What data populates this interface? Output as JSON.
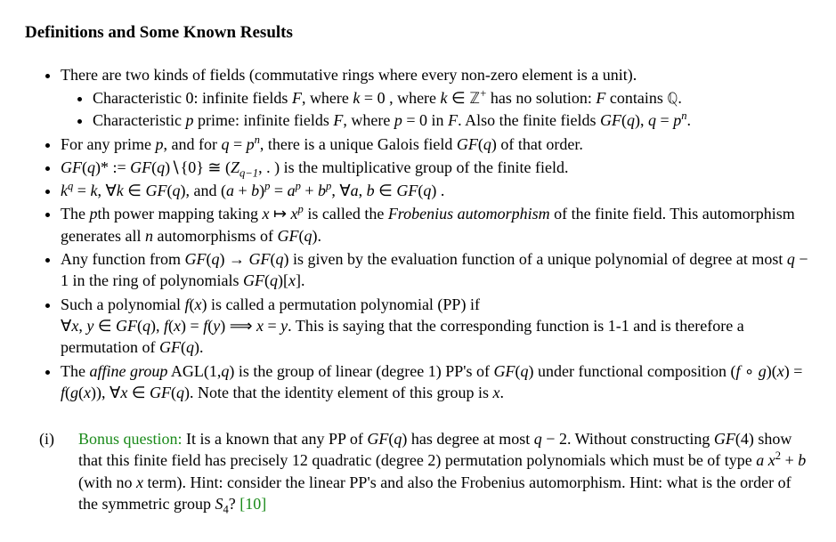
{
  "heading": "Definitions and Some Known Results",
  "b1": "There are two kinds of fields (commutative rings where every non-zero element is a unit).",
  "b1a_pre": "Characteristic 0: infinite fields ",
  "b1a_F": "F",
  "b1a_mid1": ", where ",
  "b1a_k": "k",
  "b1a_eq0": " = 0 , where ",
  "b1a_k2": "k",
  "b1a_in": " ∈ ",
  "b1a_Zplus": "ℤ",
  "b1a_plus": "+",
  "b1a_nosol": " has no solution: ",
  "b1a_F2": "F",
  "b1a_cont": " contains ",
  "b1a_Q": "ℚ",
  "b1a_dot": ".",
  "b1b_pre": "Characteristic ",
  "b1b_p": "p",
  "b1b_prime": " prime: infinite fields ",
  "b1b_F": "F",
  "b1b_where": ", where ",
  "b1b_p2": "p",
  "b1b_eq0": " = 0 in ",
  "b1b_F2": "F",
  "b1b_also": ". Also the finite fields ",
  "b1b_GFq": "GF",
  "b1b_paren": "(",
  "b1b_q": "q",
  "b1b_paren2": "), ",
  "b1b_q2": "q",
  "b1b_eq": " = ",
  "b1b_p3": "p",
  "b1b_n": "n",
  "b1b_dot": ".",
  "b2_pre": "For any prime ",
  "b2_p": "p",
  "b2_and": ", and for ",
  "b2_q": "q",
  "b2_eq": " = ",
  "b2_p2": "p",
  "b2_n": "n",
  "b2_comma": ",  there is a unique Galois field ",
  "b2_GF": "GF",
  "b2_paren": "(",
  "b2_q2": "q",
  "b2_paren2": ") of that order.",
  "b3_GF": "GF",
  "b3_paren1": "(",
  "b3_q": "q",
  "b3_star": ")* := ",
  "b3_GF2": "GF",
  "b3_paren2": "(",
  "b3_q2": "q",
  "b3_set": ")∖{0} ≅ (",
  "b3_Z": "Z",
  "b3_qminus": "q−1",
  "b3_dot": ", . ) is the multiplicative group of the finite field.",
  "b4_k": "k",
  "b4_q": "q",
  "b4_eqk": " = ",
  "b4_k2": "k",
  "b4_fork": ", ∀",
  "b4_k3": "k",
  "b4_inGF": " ∈ ",
  "b4_GF": "GF",
  "b4_p1": "(",
  "b4_q2": "q",
  "b4_p2": "), and (",
  "b4_a": "a",
  "b4_plus": " + ",
  "b4_b": "b",
  "b4_p3": ")",
  "b4_pexp": "p",
  "b4_eq2": " = ",
  "b4_a2": "a",
  "b4_pexp2": "p",
  "b4_plus2": " + ",
  "b4_b2": "b",
  "b4_pexp3": "p",
  "b4_forab": ", ∀",
  "b4_a3": "a",
  "b4_comma": ", ",
  "b4_b3": "b",
  "b4_in2": " ∈ ",
  "b4_GF2": "GF",
  "b4_p4": "(",
  "b4_q3": "q",
  "b4_p5": ") .",
  "b5_pre": "The ",
  "b5_p": "p",
  "b5_th": "th power mapping taking ",
  "b5_x": "x",
  "b5_map": " ↦ ",
  "b5_x2": "x",
  "b5_pexp": "p",
  "b5_called": " is called the ",
  "b5_frob": "Frobenius automorphism",
  "b5_of": " of the finite field.   This automorphism generates all ",
  "b5_n": "n",
  "b5_aut": " automorphisms of ",
  "b5_GF": "GF",
  "b5_p1": "(",
  "b5_q": "q",
  "b5_p2": ").",
  "b6_pre": "Any function from ",
  "b6_GF": "GF",
  "b6_p1": "(",
  "b6_q": "q",
  "b6_arrow": ") → ",
  "b6_GF2": "GF",
  "b6_p2": "(",
  "b6_q2": "q",
  "b6_p3": ") is given by the evaluation function of a unique polynomial of degree at most ",
  "b6_q3": "q",
  "b6_m1": " − 1 in the ring of polynomials ",
  "b6_GF3": "GF",
  "b6_p4": "(",
  "b6_q4": "q",
  "b6_p5": ")[",
  "b6_x": "x",
  "b6_p6": "].",
  "b7_pre": "Such a polynomial ",
  "b7_f": "f",
  "b7_p1": "(",
  "b7_x": "x",
  "b7_p2": ") is called a permutation polynomial (PP) if",
  "b7_for": "∀",
  "b7_x2": "x",
  "b7_c": ", ",
  "b7_y": "y",
  "b7_in": " ∈ ",
  "b7_GF": "GF",
  "b7_p3": "(",
  "b7_q": "q",
  "b7_p4": "), ",
  "b7_f2": "f",
  "b7_p5": "(",
  "b7_x3": "x",
  "b7_p6": ") = ",
  "b7_f3": "f",
  "b7_p7": "(",
  "b7_y2": "y",
  "b7_p8": ")  ⟹  ",
  "b7_x4": "x",
  "b7_eq": " = ",
  "b7_y3": "y",
  "b7_say": ". This is saying that the corresponding function is 1-1 and is therefore a permutation of ",
  "b7_GF2": "GF",
  "b7_p9": "(",
  "b7_q2": "q",
  "b7_p10": ").",
  "b8_pre": "The ",
  "b8_ag": "affine group",
  "b8_agl": " AGL(1,",
  "b8_q": "q",
  "b8_p1": ") is the group of linear (degree 1) PP's of ",
  "b8_GF": "GF",
  "b8_p2": "(",
  "b8_q2": "q",
  "b8_p3": ") under functional composition (",
  "b8_f": "f",
  "b8_comp": " ∘ ",
  "b8_g": "g",
  "b8_p4": ")(",
  "b8_x": "x",
  "b8_p5": ") = ",
  "b8_f2": "f",
  "b8_p6": "(",
  "b8_g2": "g",
  "b8_p7": "(",
  "b8_x2": "x",
  "b8_p8": ")), ∀",
  "b8_x3": "x",
  "b8_in": " ∈ ",
  "b8_GF2": "GF",
  "b8_p9": "(",
  "b8_q3": "q",
  "b8_p10": ").  Note that the identity element of this group is ",
  "b8_x4": "x",
  "b8_dot": ".",
  "bonus_num": "(i)",
  "bonus_label": "Bonus question:",
  "bonus_pre": " It is a known that any PP of ",
  "bonus_GF": "GF",
  "bonus_p1": "(",
  "bonus_q": "q",
  "bonus_p2": ") has degree at most ",
  "bonus_q2": "q",
  "bonus_m2": " − 2. Without constructing ",
  "bonus_GF4": "GF",
  "bonus_p3": "(4) show that this finite field has precisely 12 quadratic (degree 2) permutation polynomials which must be of type ",
  "bonus_a": "a",
  "bonus_x": " x",
  "bonus_sq": "2",
  "bonus_plus": " + ",
  "bonus_b": "b",
  "bonus_nox": " (with no ",
  "bonus_x2": "x",
  "bonus_term": " term).  Hint: consider the linear PP's and also the Frobenius automorphism. Hint: what is the order of the symmetric group ",
  "bonus_S": "S",
  "bonus_4": "4",
  "bonus_qm": "?  ",
  "bonus_pts": "[10]"
}
